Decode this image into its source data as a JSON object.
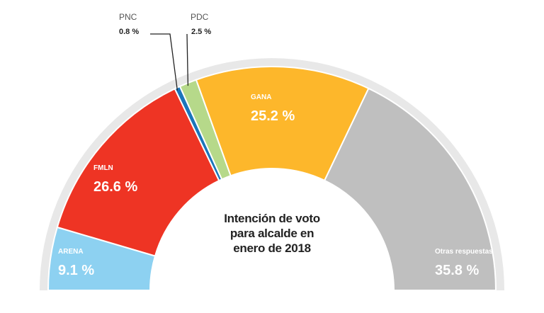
{
  "chart_data": {
    "type": "pie",
    "subtype": "semicircle",
    "title": [
      "Intención de voto",
      "para alcalde en",
      "enero de 2018"
    ],
    "slices": [
      {
        "name": "ARENA",
        "value": 9.1,
        "label": "9.1 %",
        "color": "#8dd1f1",
        "text_color": "#ffffff"
      },
      {
        "name": "FMLN",
        "value": 26.6,
        "label": "26.6 %",
        "color": "#ee3424",
        "text_color": "#ffffff"
      },
      {
        "name": "PNC",
        "value": 0.8,
        "label": "0.8 %",
        "color": "#1b75bb",
        "text_color": "#222222",
        "callout": true
      },
      {
        "name": "PDC",
        "value": 2.5,
        "label": "2.5 %",
        "color": "#b6d98a",
        "text_color": "#222222",
        "callout": true
      },
      {
        "name": "GANA",
        "value": 25.2,
        "label": "25.2 %",
        "color": "#fdb72b",
        "text_color": "#ffffff"
      },
      {
        "name": "Otras respuestas",
        "value": 35.8,
        "label": "35.8 %",
        "color": "#bfbfbf",
        "text_color": "#ffffff"
      }
    ]
  }
}
